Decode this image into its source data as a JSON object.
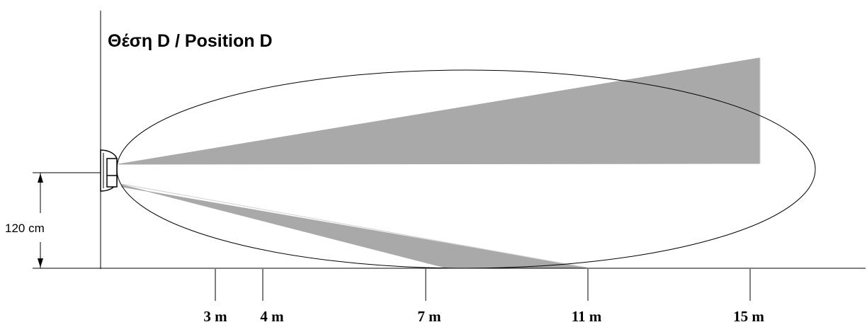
{
  "title": "Θέση D / Position D",
  "mounting_height": {
    "label": "120 cm"
  },
  "distance_markers": [
    {
      "label": "3 m"
    },
    {
      "label": "4 m"
    },
    {
      "label": "7 m"
    },
    {
      "label": "11 m"
    },
    {
      "label": "15 m"
    }
  ],
  "colors": {
    "detection_zone": "#a9a9a9",
    "lines": "#000000",
    "background": "#ffffff"
  }
}
